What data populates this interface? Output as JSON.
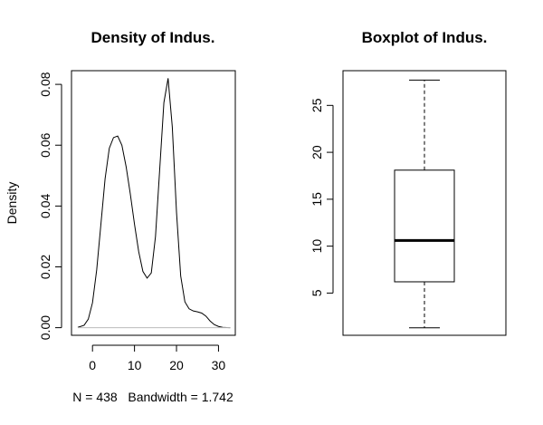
{
  "chart_data": [
    {
      "type": "line",
      "title": "Density of Indus.",
      "xlabel": "N = 438   Bandwidth = 1.742",
      "ylabel": "Density",
      "xlim": [
        -5.0,
        34.0
      ],
      "ylim": [
        -0.0025,
        0.0845
      ],
      "xticks": [
        0,
        10,
        20,
        30
      ],
      "yticks": [
        0.0,
        0.02,
        0.04,
        0.06,
        0.08
      ],
      "ytick_labels": [
        "0.00",
        "0.02",
        "0.04",
        "0.06",
        "0.08"
      ],
      "series": [
        {
          "x": [
            -3.5,
            -2,
            -1,
            0,
            1,
            2,
            3,
            4,
            5,
            6,
            7,
            8,
            9,
            10,
            11,
            12,
            13,
            14,
            15,
            16,
            17,
            18,
            19,
            20,
            21,
            22,
            23,
            24,
            25,
            26,
            27,
            28,
            29,
            30,
            31,
            32,
            32.8
          ],
          "y": [
            0.0001,
            0.0008,
            0.0028,
            0.0082,
            0.019,
            0.034,
            0.049,
            0.059,
            0.0625,
            0.063,
            0.06,
            0.053,
            0.044,
            0.034,
            0.025,
            0.0185,
            0.0163,
            0.018,
            0.03,
            0.052,
            0.074,
            0.082,
            0.066,
            0.038,
            0.017,
            0.0085,
            0.0062,
            0.0055,
            0.0052,
            0.0048,
            0.0038,
            0.0022,
            0.001,
            0.0004,
            0.0001,
            3e-05,
            0.0
          ]
        }
      ]
    },
    {
      "type": "box",
      "title": "Boxplot of Indus.",
      "ylim": [
        0.5,
        28.7
      ],
      "yticks": [
        5,
        10,
        15,
        20,
        25
      ],
      "box": {
        "min": 1.3,
        "q1": 6.2,
        "median": 10.6,
        "q3": 18.1,
        "max": 27.7
      }
    }
  ]
}
